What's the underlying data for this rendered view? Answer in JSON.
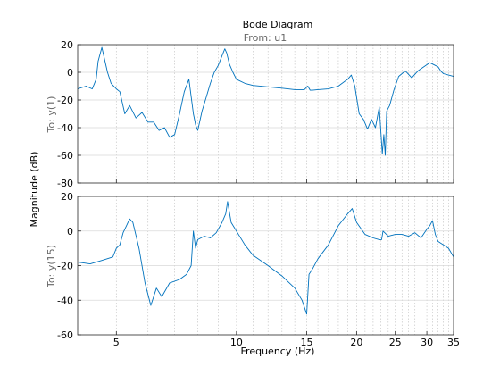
{
  "chart_data": {
    "type": "line",
    "title": "Bode Diagram",
    "subtitle": "From: u1",
    "xlabel": "Frequency  (Hz)",
    "ylabel": "Magnitude (dB)",
    "x_scale": "log",
    "xlim": [
      4,
      35
    ],
    "x_ticks": [
      5,
      10,
      15,
      20,
      25,
      30,
      35
    ],
    "x_tick_labels": [
      "5",
      "10",
      "15",
      "20",
      "25",
      "30",
      "35"
    ],
    "grid": true,
    "line_color": "#0072bd",
    "panels": [
      {
        "row_label": "To: y(1)",
        "ylim": [
          -80,
          20
        ],
        "y_ticks": [
          -80,
          -60,
          -40,
          -20,
          0,
          20
        ],
        "x": [
          4.0,
          4.2,
          4.35,
          4.45,
          4.5,
          4.6,
          4.75,
          4.85,
          5.0,
          5.1,
          5.25,
          5.4,
          5.6,
          5.8,
          6.0,
          6.2,
          6.4,
          6.6,
          6.8,
          7.0,
          7.2,
          7.4,
          7.6,
          7.8,
          7.9,
          8.0,
          8.2,
          8.4,
          8.6,
          8.8,
          9.0,
          9.2,
          9.35,
          9.45,
          9.6,
          9.8,
          10.0,
          10.5,
          11.0,
          12.0,
          13.0,
          14.0,
          14.8,
          15.1,
          15.3,
          15.5,
          16.0,
          17.0,
          18.0,
          19.0,
          19.4,
          19.8,
          20.3,
          20.8,
          21.3,
          21.8,
          22.3,
          22.8,
          23.2,
          23.4,
          23.6,
          23.8,
          24.2,
          24.8,
          25.5,
          26.5,
          27.5,
          28.5,
          29.5,
          30.5,
          31.0,
          31.5,
          32.0,
          32.5,
          33.0,
          34.0,
          35.0
        ],
        "y": [
          -12,
          -10,
          -12,
          -5,
          8,
          18,
          0,
          -8,
          -12,
          -14,
          -30,
          -24,
          -33,
          -29,
          -36,
          -36,
          -42,
          -40,
          -47,
          -45,
          -30,
          -14,
          -5,
          -30,
          -38,
          -42,
          -28,
          -18,
          -8,
          0,
          5,
          12,
          17,
          14,
          6,
          0,
          -5,
          -8,
          -9.5,
          -10.5,
          -11.5,
          -12.5,
          -12.5,
          -10,
          -13,
          -13,
          -12.5,
          -12,
          -10,
          -5,
          -2,
          -10,
          -30,
          -34,
          -41,
          -34,
          -40,
          -25,
          -59,
          -45,
          -60,
          -28,
          -24,
          -13,
          -3,
          1,
          -4,
          1,
          4,
          7,
          6,
          5,
          4,
          1,
          -1,
          -2,
          -3
        ]
      },
      {
        "row_label": "To: y(15)",
        "ylim": [
          -60,
          20
        ],
        "y_ticks": [
          -60,
          -40,
          -20,
          0,
          20
        ],
        "x": [
          4.0,
          4.3,
          4.6,
          4.9,
          5.0,
          5.1,
          5.2,
          5.3,
          5.4,
          5.5,
          5.7,
          5.9,
          6.1,
          6.3,
          6.5,
          6.8,
          7.2,
          7.5,
          7.7,
          7.8,
          7.9,
          8.0,
          8.3,
          8.6,
          8.9,
          9.2,
          9.4,
          9.5,
          9.7,
          10.0,
          10.5,
          11.0,
          12.0,
          13.0,
          14.0,
          14.6,
          15.0,
          15.2,
          15.5,
          16.0,
          17.0,
          18.0,
          19.0,
          19.5,
          20.0,
          21.0,
          22.0,
          22.8,
          23.1,
          23.3,
          24.0,
          25.0,
          26.0,
          27.0,
          28.0,
          29.0,
          30.0,
          30.5,
          31.0,
          31.5,
          32.0,
          33.0,
          34.0,
          35.0
        ],
        "y": [
          -18,
          -19,
          -17,
          -15,
          -10,
          -8,
          -1,
          3,
          7,
          5,
          -10,
          -30,
          -43,
          -33,
          -38,
          -30,
          -28,
          -25,
          -20,
          0,
          -10,
          -5,
          -3,
          -4,
          -1,
          5,
          10,
          17,
          5,
          0,
          -8,
          -14,
          -20,
          -26,
          -33,
          -40,
          -48,
          -25,
          -22,
          -16,
          -8,
          3,
          10,
          13,
          5,
          -2,
          -4,
          -5,
          -5,
          0,
          -3,
          -2,
          -2,
          -3,
          -1,
          -4,
          1,
          3,
          6,
          -2,
          -6,
          -8,
          -10,
          -15
        ]
      }
    ]
  }
}
